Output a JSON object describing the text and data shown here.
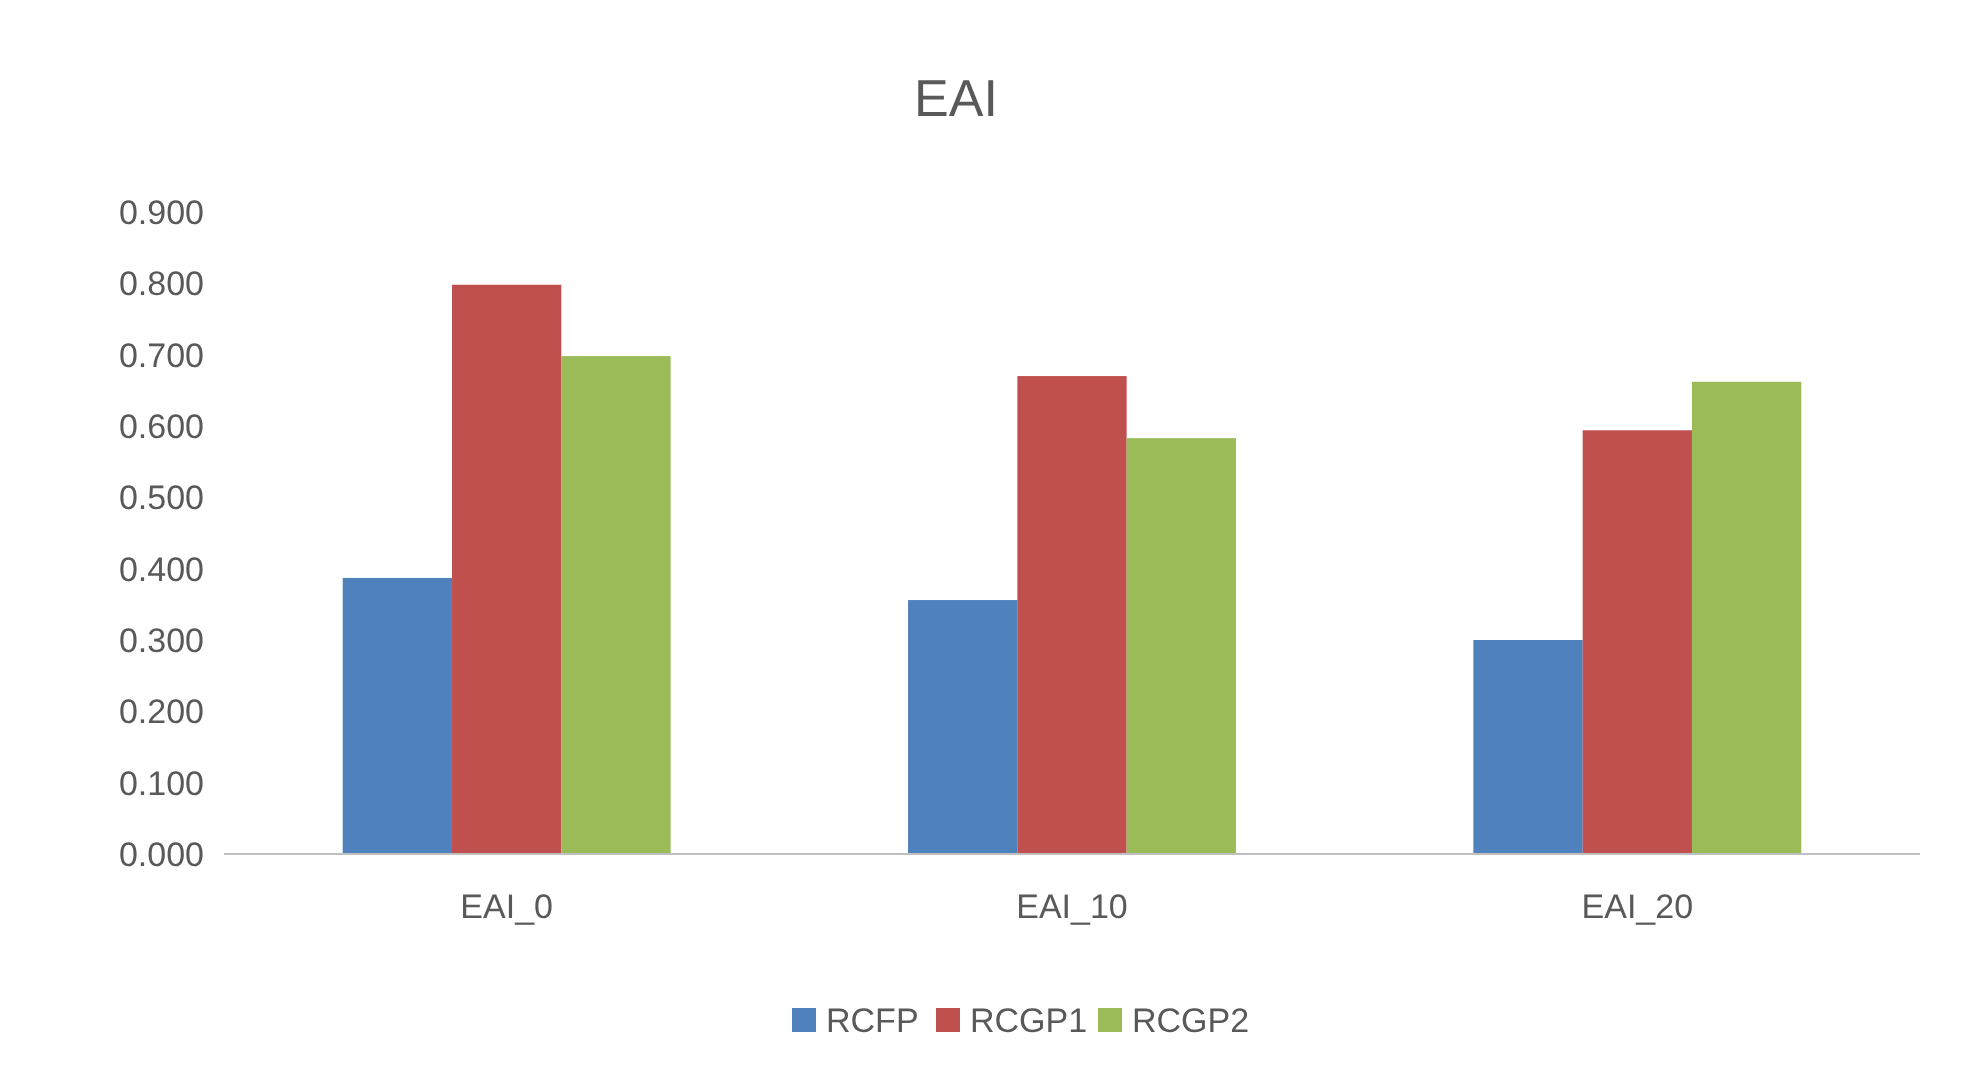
{
  "chart_data": {
    "type": "bar",
    "title": "EAI",
    "categories": [
      "EAI_0",
      "EAI_10",
      "EAI_20"
    ],
    "series": [
      {
        "name": "RCFP",
        "color": "#4f81bd",
        "values": [
          0.387,
          0.356,
          0.3
        ]
      },
      {
        "name": "RCGP1",
        "color": "#c0504d",
        "values": [
          0.798,
          0.67,
          0.594
        ]
      },
      {
        "name": "RCGP2",
        "color": "#9bbb59",
        "values": [
          0.698,
          0.583,
          0.662
        ]
      }
    ],
    "ylim": [
      0,
      0.9
    ],
    "yticks": [
      {
        "value": 0,
        "label": "0.000"
      },
      {
        "value": 0.1,
        "label": "0.100"
      },
      {
        "value": 0.2,
        "label": "0.200"
      },
      {
        "value": 0.3,
        "label": "0.300"
      },
      {
        "value": 0.4,
        "label": "0.400"
      },
      {
        "value": 0.5,
        "label": "0.500"
      },
      {
        "value": 0.6,
        "label": "0.600"
      },
      {
        "value": 0.7,
        "label": "0.700"
      },
      {
        "value": 0.8,
        "label": "0.800"
      },
      {
        "value": 0.9,
        "label": "0.900"
      }
    ],
    "grid": false,
    "legend": "bottom"
  }
}
